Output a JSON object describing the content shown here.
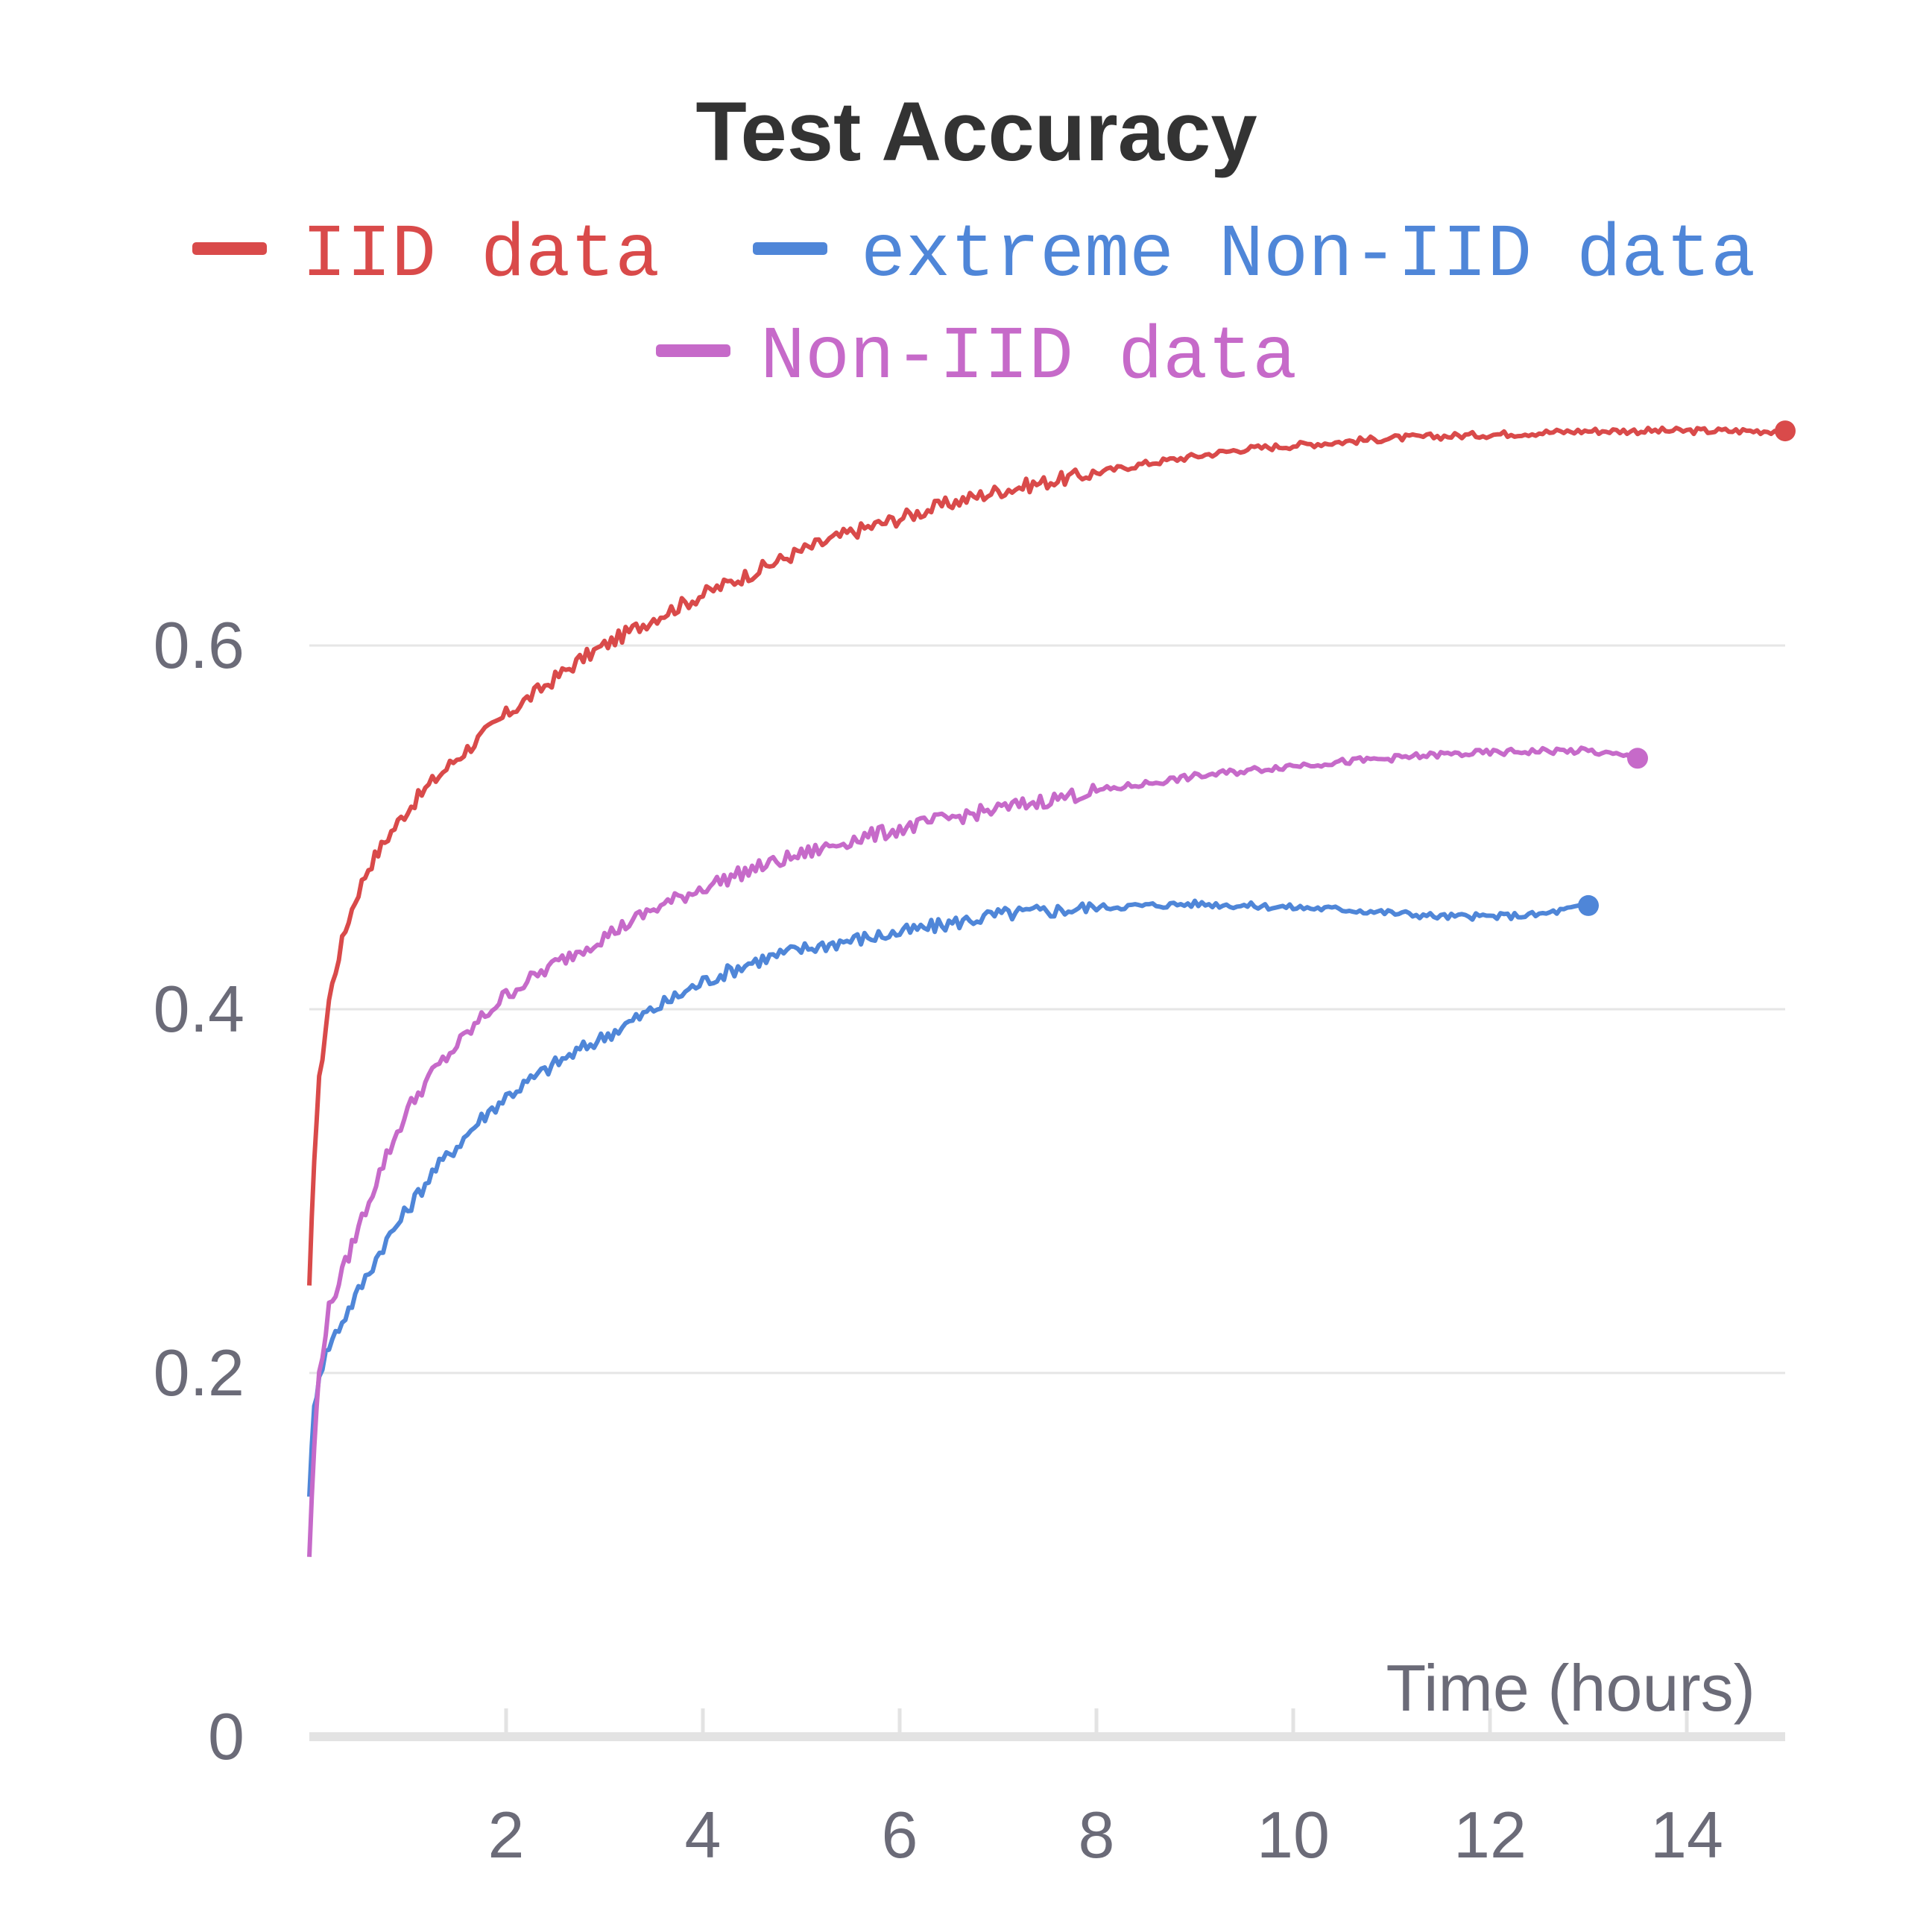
{
  "chart_data": {
    "type": "line",
    "title": "Test Accuracy",
    "xlabel": "Time (hours)",
    "ylabel": "",
    "xlim": [
      0,
      15
    ],
    "ylim": [
      0,
      0.75
    ],
    "xticks": [
      2,
      4,
      6,
      8,
      10,
      12,
      14
    ],
    "xtick_labels": [
      "2",
      "4",
      "6",
      "8",
      "10",
      "12",
      "14"
    ],
    "yticks": [
      0,
      0.2,
      0.4,
      0.6
    ],
    "ytick_labels": [
      "0",
      "0.2",
      "0.4",
      "0.6"
    ],
    "grid": "horizontal",
    "legend_position": "top-center",
    "series": [
      {
        "name": "IID data",
        "color": "#d94a4a",
        "x": [
          0.0,
          0.05,
          0.1,
          0.2,
          0.3,
          0.4,
          0.5,
          0.6,
          0.8,
          1.0,
          1.25,
          1.5,
          1.75,
          2.0,
          2.25,
          2.5,
          2.75,
          3.0,
          3.5,
          4.0,
          4.5,
          5.0,
          5.5,
          6.0,
          6.5,
          7.0,
          7.5,
          8.0,
          8.5,
          9.0,
          9.5,
          10.0,
          10.5,
          11.0,
          11.5,
          12.0,
          12.5,
          13.0,
          13.5,
          14.0,
          14.5,
          15.0
        ],
        "y": [
          0.245,
          0.32,
          0.36,
          0.405,
          0.43,
          0.45,
          0.465,
          0.478,
          0.495,
          0.51,
          0.525,
          0.538,
          0.55,
          0.562,
          0.572,
          0.582,
          0.592,
          0.6,
          0.615,
          0.628,
          0.64,
          0.652,
          0.662,
          0.67,
          0.678,
          0.685,
          0.69,
          0.695,
          0.7,
          0.704,
          0.708,
          0.71,
          0.712,
          0.714,
          0.715,
          0.716,
          0.717,
          0.718,
          0.718,
          0.718,
          0.718,
          0.718
        ]
      },
      {
        "name": "extreme Non-IID data",
        "color": "#4f86d8",
        "x": [
          0.0,
          0.05,
          0.1,
          0.2,
          0.3,
          0.5,
          0.75,
          1.0,
          1.25,
          1.5,
          1.75,
          2.0,
          2.5,
          3.0,
          3.5,
          4.0,
          4.5,
          5.0,
          5.5,
          6.0,
          6.5,
          7.0,
          7.5,
          8.0,
          8.5,
          9.0,
          9.5,
          10.0,
          10.5,
          11.0,
          11.5,
          12.0,
          12.5,
          13.0
        ],
        "y": [
          0.135,
          0.18,
          0.2,
          0.215,
          0.225,
          0.245,
          0.27,
          0.29,
          0.31,
          0.325,
          0.34,
          0.352,
          0.37,
          0.385,
          0.4,
          0.415,
          0.426,
          0.433,
          0.438,
          0.442,
          0.447,
          0.452,
          0.454,
          0.456,
          0.457,
          0.458,
          0.457,
          0.456,
          0.455,
          0.453,
          0.451,
          0.451,
          0.452,
          0.457
        ]
      },
      {
        "name": "Non-IID data",
        "color": "#c66ac9",
        "x": [
          0.0,
          0.05,
          0.1,
          0.2,
          0.3,
          0.5,
          0.75,
          1.0,
          1.25,
          1.5,
          1.75,
          2.0,
          2.5,
          3.0,
          3.5,
          4.0,
          4.5,
          5.0,
          5.5,
          6.0,
          6.5,
          7.0,
          7.5,
          8.0,
          8.5,
          9.0,
          9.5,
          10.0,
          10.5,
          11.0,
          11.5,
          12.0,
          12.5,
          13.0,
          13.5
        ],
        "y": [
          0.1,
          0.16,
          0.2,
          0.235,
          0.25,
          0.28,
          0.315,
          0.345,
          0.365,
          0.38,
          0.395,
          0.408,
          0.425,
          0.44,
          0.455,
          0.467,
          0.477,
          0.485,
          0.493,
          0.499,
          0.505,
          0.51,
          0.515,
          0.52,
          0.524,
          0.528,
          0.531,
          0.534,
          0.536,
          0.538,
          0.54,
          0.541,
          0.542,
          0.542,
          0.538
        ]
      }
    ]
  }
}
